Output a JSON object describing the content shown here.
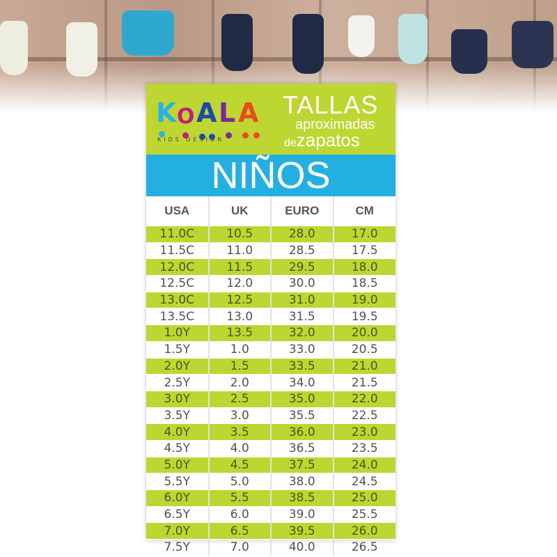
{
  "brand": {
    "logo_text": "KOALA",
    "tagline": "KIDS DESIGN"
  },
  "title": {
    "line1": "TALLAS",
    "line2": "aproximadas",
    "line3_small": "de",
    "line3_big": "zapatos"
  },
  "section": "NIÑOS",
  "colors": {
    "green": "#bdd631",
    "blue": "#23b0e0",
    "text": "#505050"
  },
  "table": {
    "headers": [
      "USA",
      "UK",
      "EURO",
      "CM"
    ],
    "rows": [
      [
        "11.0C",
        "10.5",
        "28.0",
        "17.0"
      ],
      [
        "11.5C",
        "11.0",
        "28.5",
        "17.5"
      ],
      [
        "12.0C",
        "11.5",
        "29.5",
        "18.0"
      ],
      [
        "12.5C",
        "12.0",
        "30.0",
        "18.5"
      ],
      [
        "13.0C",
        "12.5",
        "31.0",
        "19.0"
      ],
      [
        "13.5C",
        "13.0",
        "31.5",
        "19.5"
      ],
      [
        "1.0Y",
        "13.5",
        "32.0",
        "20.0"
      ],
      [
        "1.5Y",
        "1.0",
        "33.0",
        "20.5"
      ],
      [
        "2.0Y",
        "1.5",
        "33.5",
        "21.0"
      ],
      [
        "2.5Y",
        "2.0",
        "34.0",
        "21.5"
      ],
      [
        "3.0Y",
        "2.5",
        "35.0",
        "22.0"
      ],
      [
        "3.5Y",
        "3.0",
        "35.5",
        "22.5"
      ],
      [
        "4.0Y",
        "3.5",
        "36.0",
        "23.0"
      ],
      [
        "4.5Y",
        "4.0",
        "36.5",
        "23.5"
      ],
      [
        "5.0Y",
        "4.5",
        "37.5",
        "24.0"
      ],
      [
        "5.5Y",
        "5.0",
        "38.0",
        "24.5"
      ],
      [
        "6.0Y",
        "5.5",
        "38.5",
        "25.0"
      ],
      [
        "6.5Y",
        "6.0",
        "39.0",
        "25.5"
      ],
      [
        "7.0Y",
        "6.5",
        "39.5",
        "26.0"
      ],
      [
        "7.5Y",
        "7.0",
        "40.0",
        "26.5"
      ]
    ]
  }
}
